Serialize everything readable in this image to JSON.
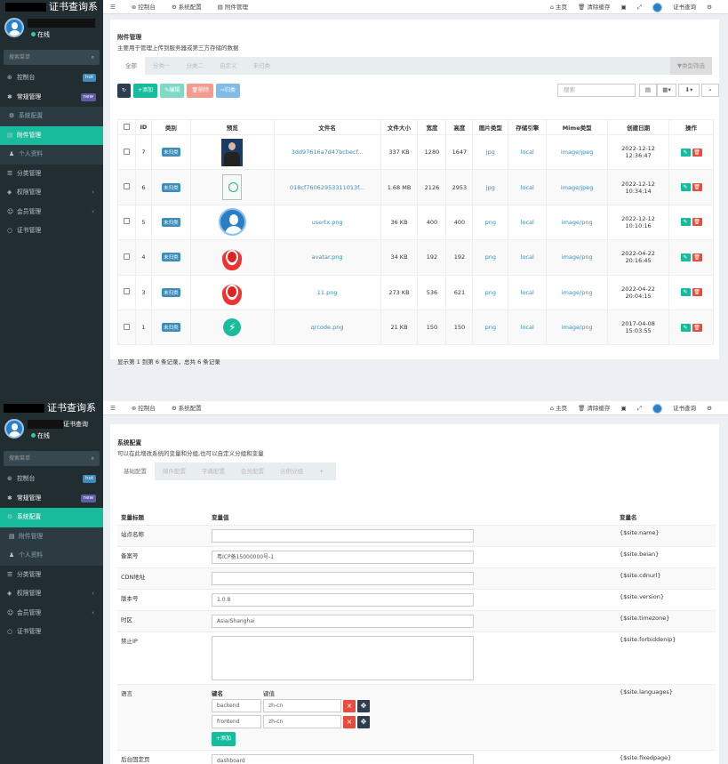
{
  "common": {
    "site_suffix": "证书查询系",
    "online": "在线",
    "search_placeholder": "搜索菜单",
    "user_suffix": "证书查询",
    "menu": [
      {
        "label": "控制台",
        "icon": "⊛",
        "badge": "hot",
        "badge_color": "#3c8dbc"
      },
      {
        "label": "常规管理",
        "icon": "✱",
        "badge": "new",
        "badge_color": "#605ca8"
      },
      {
        "label": "系统配置",
        "icon": "⚙"
      },
      {
        "label": "附件管理",
        "icon": "▤"
      },
      {
        "label": "个人资料",
        "icon": "♟"
      },
      {
        "label": "分类管理",
        "icon": "☰"
      },
      {
        "label": "权限管理",
        "icon": "◈"
      },
      {
        "label": "会员管理",
        "icon": "☺"
      },
      {
        "label": "证书管理",
        "icon": "○"
      }
    ],
    "top_home": "主页",
    "top_clear": "清除缓存",
    "top_user": "证书查询"
  },
  "pane1": {
    "top_tabs": [
      "控制台",
      "系统配置",
      "附件管理"
    ],
    "title": "附件管理",
    "desc": "主要用于管理上传到服务器或第三方存储的数据",
    "tabs": [
      "全部",
      "分类一",
      "分类二",
      "自定义",
      "未归类"
    ],
    "filter": "▼类型筛选",
    "buttons": {
      "add": "+添加",
      "edit": "✎编辑",
      "del": "🗑删除",
      "classify": "⇨归类"
    },
    "search_placeholder": "搜索",
    "headers": [
      "ID",
      "类别",
      "预览",
      "文件名",
      "文件大小",
      "宽度",
      "高度",
      "图片类型",
      "存储引擎",
      "Mime类型",
      "创建日期",
      "操作"
    ],
    "rows": [
      {
        "id": "7",
        "cat": "未归类",
        "file": "3dd97616a7d47bcbecf...",
        "size": "337 KB",
        "w": "1280",
        "h": "1647",
        "type": "jpg",
        "store": "local",
        "mime": "image/jpeg",
        "date": "2022-12-12 12:36:47",
        "preview": "photo"
      },
      {
        "id": "6",
        "cat": "未归类",
        "file": "018cf76062953311013f...",
        "size": "1.68 MB",
        "w": "2126",
        "h": "2953",
        "type": "jpg",
        "store": "local",
        "mime": "image/jpeg",
        "date": "2022-12-12 10:34:14",
        "preview": "cert"
      },
      {
        "id": "5",
        "cat": "未归类",
        "file": "usertx.png",
        "size": "36 KB",
        "w": "400",
        "h": "400",
        "type": "png",
        "store": "local",
        "mime": "image/png",
        "date": "2022-12-12 10:10:16",
        "preview": "user"
      },
      {
        "id": "4",
        "cat": "未归类",
        "file": "avatar.png",
        "size": "34 KB",
        "w": "192",
        "h": "192",
        "type": "png",
        "store": "local",
        "mime": "image/png",
        "date": "2022-04-22 20:16:45",
        "preview": "fire"
      },
      {
        "id": "3",
        "cat": "未归类",
        "file": "11.png",
        "size": "273 KB",
        "w": "536",
        "h": "621",
        "type": "png",
        "store": "local",
        "mime": "image/png",
        "date": "2022-04-22 20:04:15",
        "preview": "fire"
      },
      {
        "id": "1",
        "cat": "未归类",
        "file": "qrcode.png",
        "size": "21 KB",
        "w": "150",
        "h": "150",
        "type": "png",
        "store": "local",
        "mime": "image/png",
        "date": "2017-04-08 15:03:55",
        "preview": "qr"
      }
    ],
    "footer": "显示第 1 到第 6 条记录，总共 6 条记录"
  },
  "pane2": {
    "top_tabs": [
      "控制台",
      "系统配置"
    ],
    "title": "系统配置",
    "desc": "可以在此增改系统的变量和分组,也可以自定义分组和变量",
    "tabs": [
      "基础配置",
      "邮件配置",
      "字典配置",
      "会员配置",
      "示例分组",
      "+"
    ],
    "headers": [
      "变量标题",
      "变量值",
      "变量名"
    ],
    "rows": [
      {
        "label": "站点名称",
        "value": "",
        "var": "{$site.name}"
      },
      {
        "label": "备案号",
        "value": "粤ICP备15000000号-1",
        "var": "{$site.beian}"
      },
      {
        "label": "CDN地址",
        "value": "",
        "var": "{$site.cdnurl}"
      },
      {
        "label": "版本号",
        "value": "1.0.8",
        "var": "{$site.version}"
      },
      {
        "label": "时区",
        "value": "Asia/Shanghai",
        "var": "{$site.timezone}"
      },
      {
        "label": "禁止IP",
        "value": "",
        "var": "{$site.forbiddenip}"
      },
      {
        "label": "语言",
        "value": "",
        "var": "{$site.languages}"
      },
      {
        "label": "后台固定页",
        "value": "dashboard",
        "var": "{$site.fixedpage}"
      }
    ],
    "lang_key_header": "键名",
    "lang_val_header": "键值",
    "langs": [
      {
        "k": "backend",
        "v": "zh-cn"
      },
      {
        "k": "frontend",
        "v": "zh-cn"
      }
    ],
    "add_label": "+添加"
  }
}
